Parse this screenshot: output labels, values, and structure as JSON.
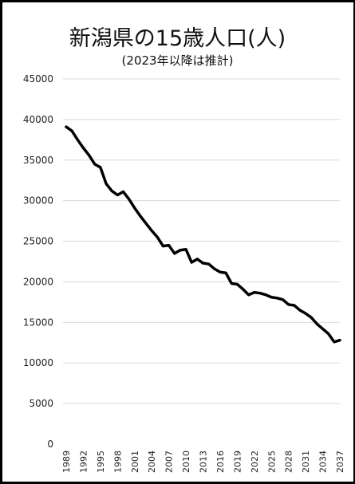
{
  "chart_data": {
    "type": "line",
    "title": "新潟県の15歳人口(人)",
    "subtitle": "(2023年以降は推計)",
    "xlabel": "",
    "ylabel": "",
    "ylim": [
      0,
      45000
    ],
    "yticks": [
      0,
      5000,
      10000,
      15000,
      20000,
      25000,
      30000,
      35000,
      40000,
      45000
    ],
    "xtick_labels": [
      "1989",
      "1992",
      "1995",
      "1998",
      "2001",
      "2004",
      "2007",
      "2010",
      "2013",
      "2016",
      "2019",
      "2022",
      "2025",
      "2028",
      "2031",
      "2034",
      "2037"
    ],
    "grid": true,
    "legend": "none",
    "series_color": "#000000",
    "x": [
      1989,
      1990,
      1991,
      1992,
      1993,
      1994,
      1995,
      1996,
      1997,
      1998,
      1999,
      2000,
      2001,
      2002,
      2003,
      2004,
      2005,
      2006,
      2007,
      2008,
      2009,
      2010,
      2011,
      2012,
      2013,
      2014,
      2015,
      2016,
      2017,
      2018,
      2019,
      2020,
      2021,
      2022,
      2023,
      2024,
      2025,
      2026,
      2027,
      2028,
      2029,
      2030,
      2031,
      2032,
      2033,
      2034,
      2035,
      2036,
      2037
    ],
    "series": [
      {
        "values": [
          39100,
          38600,
          37500,
          36500,
          35600,
          34500,
          34100,
          32100,
          31200,
          30700,
          31100,
          30200,
          29100,
          28100,
          27200,
          26300,
          25500,
          24400,
          24500,
          23500,
          23900,
          24000,
          22400,
          22800,
          22300,
          22200,
          21600,
          21200,
          21100,
          19800,
          19700,
          19100,
          18400,
          18700,
          18600,
          18400,
          18100,
          18000,
          17800,
          17200,
          17100,
          16500,
          16100,
          15600,
          14800,
          14200,
          13600,
          12600,
          12800
        ]
      }
    ]
  }
}
